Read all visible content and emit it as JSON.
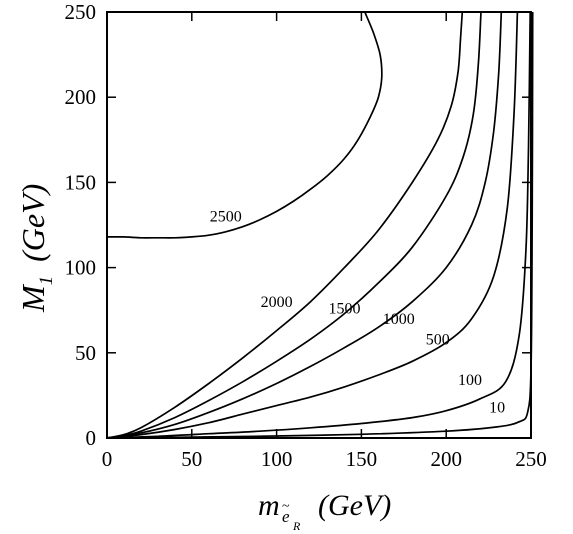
{
  "chart_data": {
    "type": "line",
    "xlabel": {
      "main": "m",
      "sub_tilde": "e",
      "sub": "R",
      "unit": "(GeV)"
    },
    "ylabel": {
      "main": "M",
      "sub": "1",
      "unit": "(GeV)"
    },
    "xlim": [
      0,
      250
    ],
    "ylim": [
      0,
      250
    ],
    "xticks": [
      0,
      50,
      100,
      150,
      200,
      250
    ],
    "yticks": [
      0,
      50,
      100,
      150,
      200,
      250
    ],
    "grid": false,
    "legend": "none",
    "series": [
      {
        "name": "2500",
        "label_at": [
          70,
          127
        ],
        "x": [
          0,
          10,
          20,
          30,
          40,
          50,
          60,
          70,
          80,
          90,
          100,
          110,
          120,
          130,
          140,
          148,
          155,
          160,
          162,
          161,
          157,
          152
        ],
        "y": [
          118,
          118,
          117.5,
          117.5,
          117.5,
          118,
          119,
          121,
          124,
          128,
          133,
          139,
          146,
          154,
          164,
          175,
          188,
          200,
          212,
          225,
          238,
          250
        ]
      },
      {
        "name": "2000",
        "label_at": [
          100,
          77
        ],
        "x": [
          0,
          10,
          20,
          40,
          60,
          80,
          100,
          120,
          140,
          160,
          180,
          195,
          203,
          207,
          208.5,
          209.5
        ],
        "y": [
          0,
          2,
          6,
          18,
          32,
          47,
          63,
          80,
          100,
          122,
          150,
          175,
          195,
          215,
          235,
          250
        ]
      },
      {
        "name": "1500",
        "label_at": [
          140,
          73
        ],
        "x": [
          0,
          10,
          20,
          40,
          60,
          80,
          100,
          120,
          140,
          160,
          180,
          200,
          210,
          216,
          219,
          220.5
        ],
        "y": [
          0,
          1.5,
          4,
          12,
          22,
          33,
          45,
          58,
          73,
          91,
          112,
          142,
          165,
          190,
          220,
          250
        ]
      },
      {
        "name": "1000",
        "label_at": [
          172,
          67
        ],
        "x": [
          0,
          20,
          40,
          60,
          80,
          100,
          120,
          140,
          160,
          180,
          200,
          215,
          223,
          228,
          231,
          232.5
        ],
        "y": [
          0,
          3,
          8,
          15,
          23,
          32,
          42,
          53,
          65,
          80,
          100,
          125,
          150,
          180,
          215,
          250
        ]
      },
      {
        "name": "500",
        "label_at": [
          195,
          55
        ],
        "x": [
          0,
          20,
          40,
          60,
          80,
          100,
          120,
          140,
          160,
          180,
          200,
          215,
          228,
          236,
          240,
          242
        ],
        "y": [
          0,
          2,
          5,
          9,
          14,
          19,
          24,
          30,
          37,
          45,
          56,
          70,
          95,
          135,
          190,
          250
        ]
      },
      {
        "name": "100",
        "label_at": [
          214,
          31
        ],
        "x": [
          0,
          30,
          60,
          90,
          120,
          150,
          180,
          200,
          220,
          235,
          243,
          247,
          248.5,
          249.5
        ],
        "y": [
          0,
          1,
          2.5,
          4,
          6,
          8.5,
          12,
          16,
          23,
          33,
          60,
          110,
          170,
          250
        ]
      },
      {
        "name": "10",
        "label_at": [
          230,
          15
        ],
        "x": [
          0,
          50,
          100,
          150,
          200,
          230,
          243,
          248,
          250,
          250.7,
          251
        ],
        "y": [
          0,
          0.5,
          1.2,
          2.2,
          4,
          6.5,
          9.5,
          15,
          40,
          130,
          250
        ]
      }
    ]
  }
}
